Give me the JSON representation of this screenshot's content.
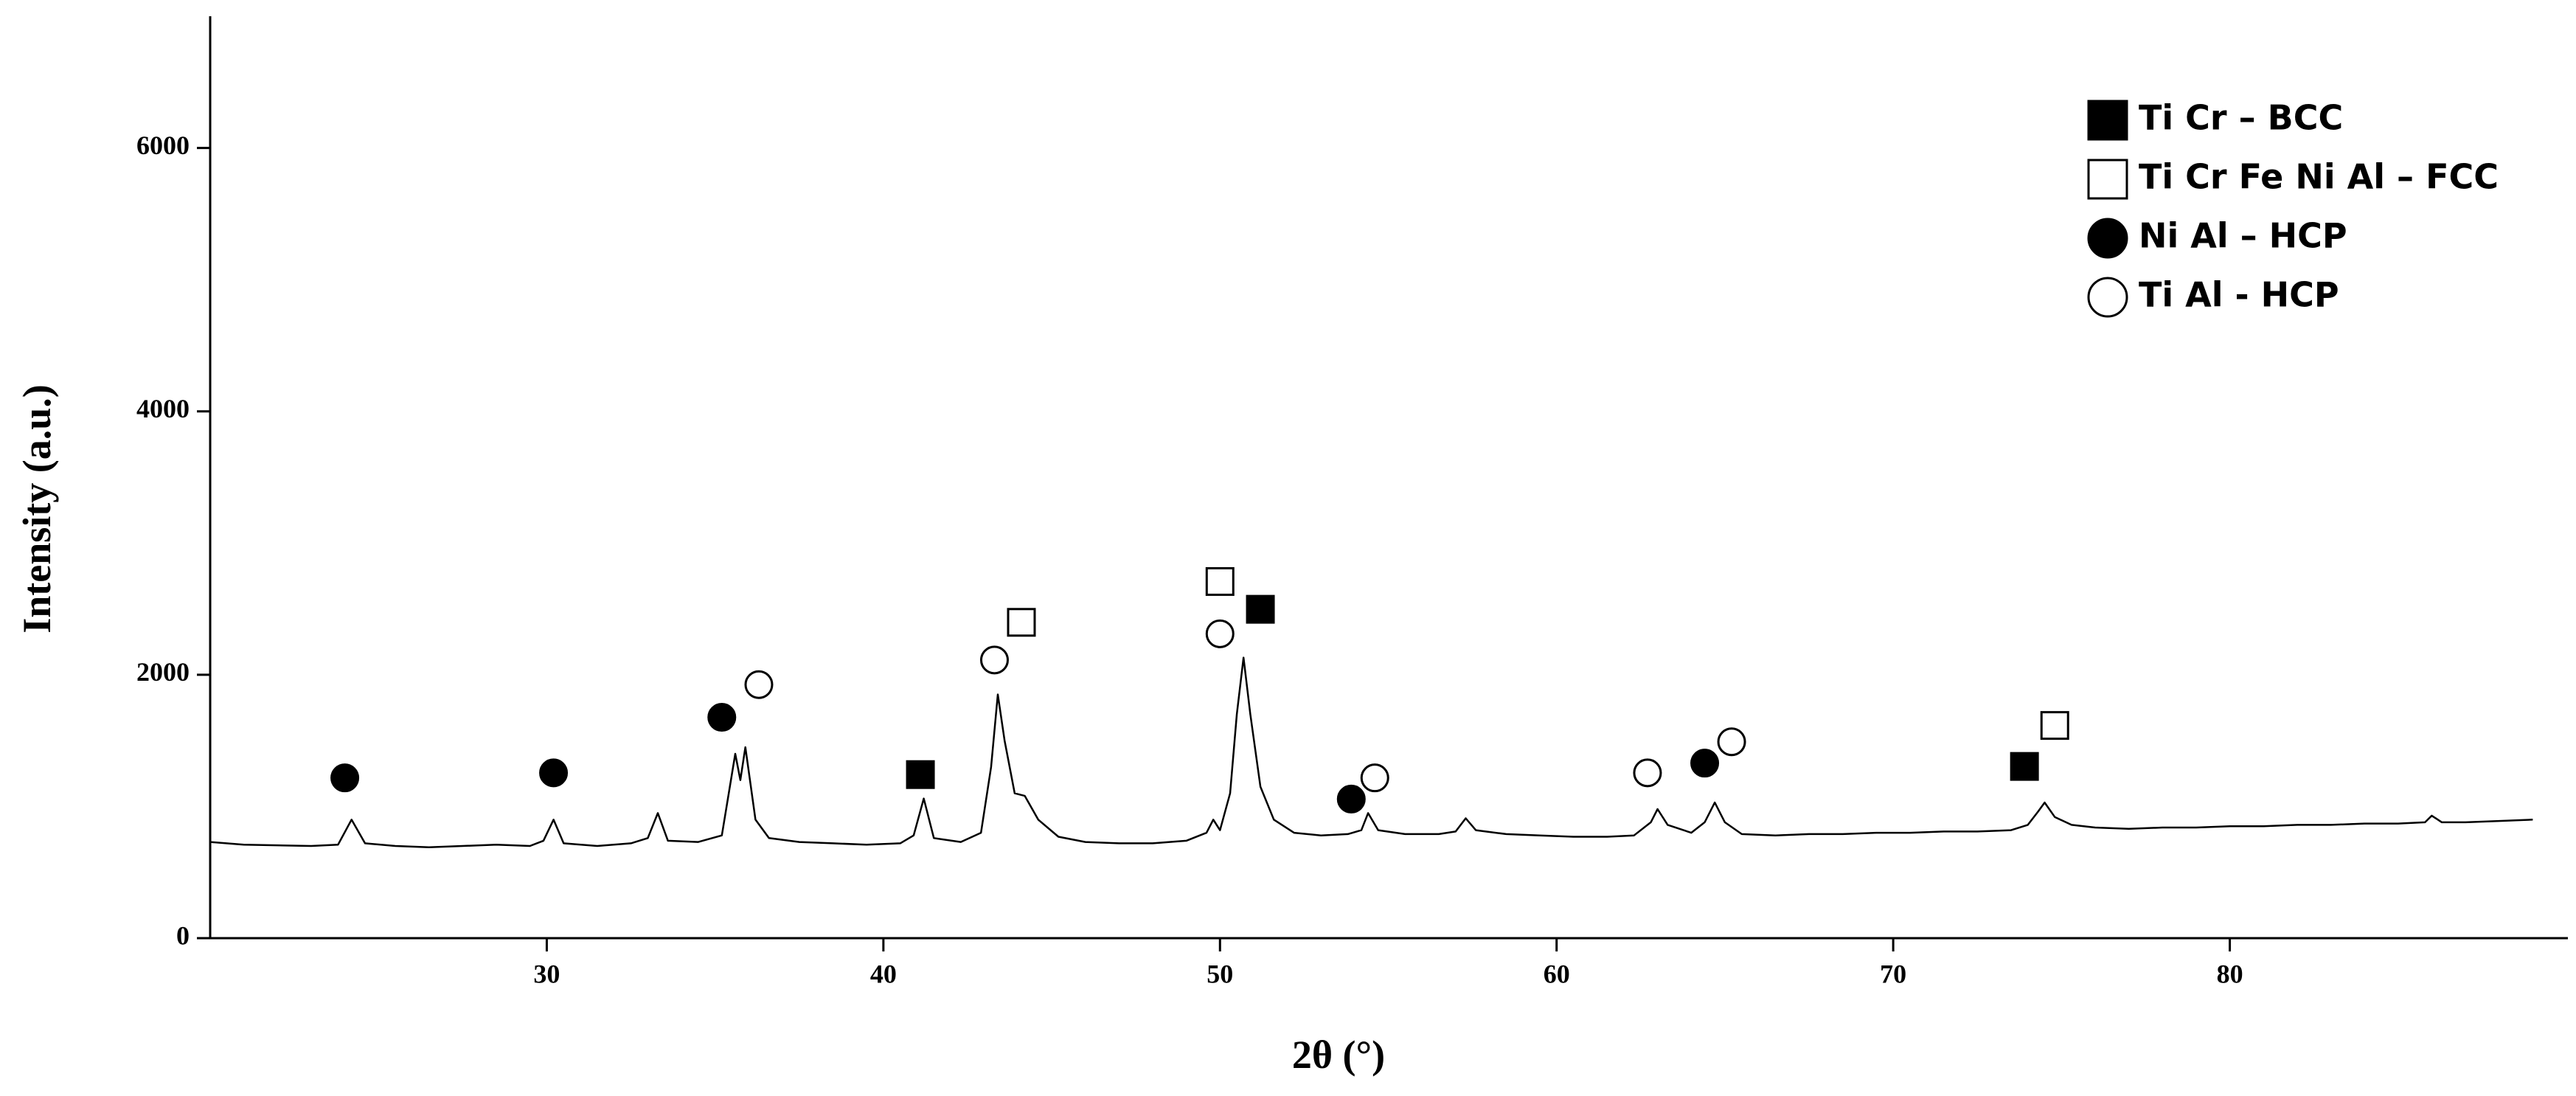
{
  "chart_data": {
    "type": "line",
    "x_label": "2θ (°)",
    "y_label": "Intensity (a.u.)",
    "xlim": [
      20,
      90
    ],
    "ylim": [
      0,
      7000
    ],
    "xticks": [
      30,
      40,
      50,
      60,
      70,
      80
    ],
    "yticks": [
      0,
      2000,
      4000,
      6000
    ],
    "color": "#000000",
    "x": [
      20,
      21,
      22,
      23,
      23.8,
      24.2,
      24.6,
      25.5,
      26.5,
      27.5,
      28.5,
      29.5,
      29.9,
      30.2,
      30.5,
      31.5,
      32.5,
      33.0,
      33.3,
      33.6,
      34.5,
      35.2,
      35.6,
      35.75,
      35.9,
      36.2,
      36.6,
      37.5,
      38.5,
      39.5,
      40.5,
      40.9,
      41.2,
      41.5,
      42.3,
      42.9,
      43.2,
      43.4,
      43.6,
      43.9,
      44.2,
      44.6,
      45.2,
      46,
      47,
      48,
      49,
      49.6,
      49.8,
      50.0,
      50.3,
      50.5,
      50.7,
      50.9,
      51.2,
      51.6,
      52.2,
      53,
      53.8,
      54.2,
      54.4,
      54.7,
      55.5,
      56.5,
      57.0,
      57.3,
      57.6,
      58.5,
      59.5,
      60.5,
      61.5,
      62.3,
      62.8,
      63.0,
      63.3,
      64.0,
      64.4,
      64.7,
      65.0,
      65.5,
      66.5,
      67.5,
      68.5,
      69.5,
      70.5,
      71.5,
      72.5,
      73.5,
      74.0,
      74.3,
      74.5,
      74.8,
      75.3,
      76,
      77,
      78,
      79,
      80,
      81,
      82,
      83,
      84,
      85,
      85.8,
      86.0,
      86.3,
      87,
      88,
      89
    ],
    "values": [
      730,
      710,
      705,
      700,
      710,
      900,
      720,
      700,
      690,
      700,
      710,
      700,
      740,
      900,
      720,
      700,
      720,
      760,
      950,
      740,
      730,
      780,
      1400,
      1200,
      1450,
      900,
      760,
      730,
      720,
      710,
      720,
      780,
      1060,
      760,
      730,
      800,
      1300,
      1850,
      1500,
      1100,
      1080,
      900,
      770,
      730,
      720,
      720,
      740,
      800,
      900,
      820,
      1100,
      1700,
      2130,
      1700,
      1150,
      900,
      800,
      780,
      790,
      820,
      950,
      820,
      790,
      790,
      810,
      910,
      820,
      790,
      780,
      770,
      770,
      780,
      880,
      980,
      860,
      800,
      880,
      1030,
      880,
      790,
      780,
      790,
      790,
      800,
      800,
      810,
      810,
      820,
      860,
      960,
      1030,
      920,
      860,
      840,
      830,
      840,
      840,
      850,
      850,
      860,
      860,
      870,
      870,
      880,
      930,
      880,
      880,
      890,
      900
    ],
    "phases": [
      {
        "name": "Ti Cr – BCC",
        "marker": "filled-square",
        "x": [
          41.1,
          51.2,
          73.9
        ],
        "values": [
          1242,
          2497,
          1304
        ]
      },
      {
        "name": "Ti Cr Fe Ni Al – FCC",
        "marker": "open-square",
        "x": [
          44.1,
          50.0,
          74.8
        ],
        "values": [
          2398,
          2708,
          1615
        ]
      },
      {
        "name": "Ni Al – HCP",
        "marker": "filled-circle",
        "x": [
          24.0,
          30.2,
          35.2,
          53.9,
          64.4
        ],
        "values": [
          1217,
          1255,
          1677,
          1056,
          1329
        ]
      },
      {
        "name": "Ti Al - HCP",
        "marker": "open-circle",
        "x": [
          36.3,
          43.3,
          50.0,
          54.6,
          62.7,
          65.2
        ],
        "values": [
          1925,
          2112,
          2311,
          1217,
          1255,
          1491
        ]
      }
    ]
  }
}
